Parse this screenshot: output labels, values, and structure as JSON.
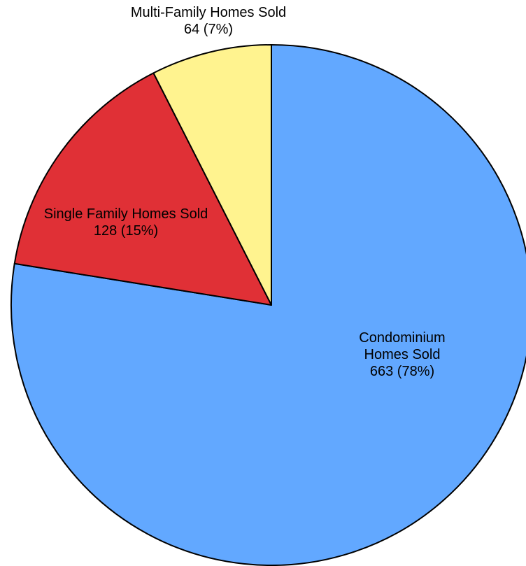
{
  "chart_data": {
    "type": "pie",
    "categories": [
      "Condominium Homes Sold",
      "Single Family Homes Sold",
      "Multi-Family Homes Sold"
    ],
    "values": [
      663,
      128,
      64
    ],
    "value_labels": [
      "663 (78%)",
      "128 (15%)",
      "64 (7%)"
    ],
    "colors": [
      "#62a8ff",
      "#e03036",
      "#fff38f"
    ]
  }
}
